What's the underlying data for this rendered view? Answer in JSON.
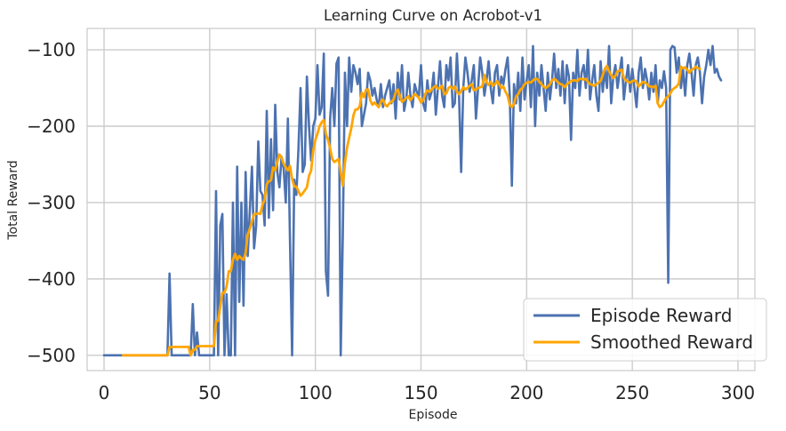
{
  "chart_data": {
    "type": "line",
    "title": "Learning Curve on Acrobot-v1",
    "xlabel": "Episode",
    "ylabel": "Total Reward",
    "xlim": [
      -8,
      308
    ],
    "ylim": [
      -520,
      -72
    ],
    "xticks": [
      0,
      50,
      100,
      150,
      200,
      250,
      300
    ],
    "yticks": [
      -500,
      -400,
      -300,
      -200,
      -100
    ],
    "ytick_labels": [
      "−500",
      "−400",
      "−300",
      "−200",
      "−100"
    ],
    "grid": true,
    "legend_position": "bottom-right",
    "series": [
      {
        "name": "Episode Reward",
        "color": "#4c72b0",
        "x_start": 0,
        "values": [
          -500,
          -500,
          -500,
          -500,
          -500,
          -500,
          -500,
          -500,
          -500,
          -500,
          -500,
          -500,
          -500,
          -500,
          -500,
          -500,
          -500,
          -500,
          -500,
          -500,
          -500,
          -500,
          -500,
          -500,
          -500,
          -500,
          -500,
          -500,
          -500,
          -500,
          -500,
          -393,
          -500,
          -500,
          -500,
          -500,
          -500,
          -500,
          -500,
          -500,
          -500,
          -500,
          -433,
          -500,
          -470,
          -500,
          -500,
          -500,
          -500,
          -500,
          -500,
          -500,
          -500,
          -285,
          -500,
          -330,
          -315,
          -500,
          -420,
          -500,
          -500,
          -300,
          -500,
          -253,
          -430,
          -300,
          -435,
          -260,
          -370,
          -310,
          -253,
          -360,
          -330,
          -220,
          -285,
          -290,
          -330,
          -180,
          -320,
          -217,
          -310,
          -172,
          -260,
          -280,
          -240,
          -255,
          -300,
          -190,
          -350,
          -500,
          -270,
          -290,
          -230,
          -150,
          -260,
          -250,
          -135,
          -200,
          -245,
          -200,
          -190,
          -120,
          -185,
          -175,
          -105,
          -390,
          -422,
          -190,
          -150,
          -200,
          -118,
          -110,
          -500,
          -340,
          -130,
          -200,
          -110,
          -155,
          -120,
          -130,
          -145,
          -125,
          -200,
          -185,
          -170,
          -130,
          -140,
          -160,
          -150,
          -165,
          -175,
          -145,
          -175,
          -160,
          -150,
          -140,
          -170,
          -145,
          -190,
          -130,
          -165,
          -120,
          -180,
          -165,
          -130,
          -160,
          -175,
          -145,
          -155,
          -160,
          -120,
          -170,
          -180,
          -140,
          -165,
          -155,
          -130,
          -185,
          -150,
          -115,
          -160,
          -175,
          -120,
          -140,
          -110,
          -175,
          -170,
          -105,
          -160,
          -260,
          -150,
          -110,
          -130,
          -155,
          -140,
          -120,
          -190,
          -150,
          -110,
          -130,
          -160,
          -140,
          -115,
          -150,
          -170,
          -130,
          -120,
          -160,
          -135,
          -145,
          -125,
          -110,
          -160,
          -278,
          -145,
          -170,
          -130,
          -180,
          -110,
          -165,
          -140,
          -120,
          -175,
          -95,
          -200,
          -130,
          -160,
          -120,
          -150,
          -180,
          -130,
          -165,
          -140,
          -105,
          -150,
          -125,
          -160,
          -115,
          -170,
          -120,
          -135,
          -218,
          -130,
          -150,
          -100,
          -160,
          -130,
          -120,
          -150,
          -100,
          -165,
          -140,
          -120,
          -160,
          -180,
          -115,
          -155,
          -125,
          -150,
          -95,
          -170,
          -135,
          -120,
          -150,
          -130,
          -110,
          -165,
          -140,
          -120,
          -155,
          -125,
          -150,
          -175,
          -130,
          -110,
          -150,
          -125,
          -140,
          -165,
          -130,
          -155,
          -120,
          -170,
          -140,
          -150,
          -128,
          -150,
          -405,
          -100,
          -95,
          -97,
          -130,
          -110,
          -150,
          -125,
          -160,
          -120,
          -105,
          -130,
          -160,
          -120,
          -110,
          -130,
          -170,
          -135,
          -120,
          -100,
          -120,
          -95,
          -130,
          -125,
          -135,
          -140
        ]
      },
      {
        "name": "Smoothed Reward",
        "color": "#ffa500",
        "x_start": 9,
        "values": [
          -500,
          -500,
          -500,
          -500,
          -500,
          -500,
          -500,
          -500,
          -500,
          -500,
          -500,
          -500,
          -500,
          -500,
          -500,
          -500,
          -500,
          -500,
          -500,
          -500,
          -500,
          -500,
          -489,
          -489,
          -489,
          -489,
          -489,
          -489,
          -489,
          -489,
          -489,
          -489,
          -500,
          -493,
          -493,
          -488,
          -488,
          -488,
          -488,
          -488,
          -488,
          -488,
          -488,
          -488,
          -455,
          -455,
          -436,
          -418,
          -418,
          -410,
          -390,
          -390,
          -375,
          -367,
          -375,
          -370,
          -373,
          -375,
          -366,
          -342,
          -334,
          -325,
          -315,
          -315,
          -314,
          -315,
          -303,
          -296,
          -276,
          -272,
          -271,
          -254,
          -258,
          -247,
          -237,
          -241,
          -249,
          -254,
          -258,
          -252,
          -269,
          -279,
          -279,
          -285,
          -291,
          -288,
          -284,
          -280,
          -265,
          -258,
          -232,
          -218,
          -210,
          -200,
          -195,
          -192,
          -210,
          -218,
          -229,
          -243,
          -247,
          -245,
          -243,
          -260,
          -278,
          -248,
          -228,
          -215,
          -203,
          -186,
          -178,
          -178,
          -174,
          -156,
          -162,
          -152,
          -152,
          -166,
          -172,
          -169,
          -172,
          -175,
          -168,
          -165,
          -172,
          -174,
          -170,
          -168,
          -165,
          -156,
          -152,
          -160,
          -168,
          -166,
          -163,
          -161,
          -166,
          -162,
          -158,
          -160,
          -163,
          -169,
          -166,
          -158,
          -153,
          -155,
          -152,
          -149,
          -147,
          -151,
          -150,
          -147,
          -158,
          -157,
          -150,
          -148,
          -151,
          -148,
          -155,
          -158,
          -154,
          -149,
          -152,
          -150,
          -147,
          -145,
          -153,
          -152,
          -150,
          -149,
          -148,
          -133,
          -142,
          -146,
          -142,
          -147,
          -145,
          -141,
          -145,
          -150,
          -148,
          -155,
          -160,
          -172,
          -175,
          -171,
          -161,
          -158,
          -152,
          -150,
          -145,
          -143,
          -142,
          -143,
          -140,
          -138,
          -138,
          -142,
          -145,
          -148,
          -150,
          -148,
          -145,
          -140,
          -138,
          -140,
          -143,
          -145,
          -146,
          -149,
          -145,
          -143,
          -141,
          -140,
          -140,
          -141,
          -138,
          -138,
          -139,
          -138,
          -142,
          -145,
          -146,
          -147,
          -145,
          -143,
          -141,
          -133,
          -125,
          -121,
          -128,
          -133,
          -137,
          -134,
          -128,
          -127,
          -126,
          -137,
          -140,
          -142,
          -143,
          -141,
          -140,
          -142,
          -148,
          -145,
          -142,
          -143,
          -145,
          -148,
          -148,
          -149,
          -147,
          -170,
          -175,
          -173,
          -168,
          -163,
          -161,
          -157,
          -152,
          -150,
          -148,
          -144,
          -122,
          -124,
          -123,
          -126,
          -130,
          -126,
          -125,
          -122,
          -124,
          -125
        ]
      }
    ]
  }
}
